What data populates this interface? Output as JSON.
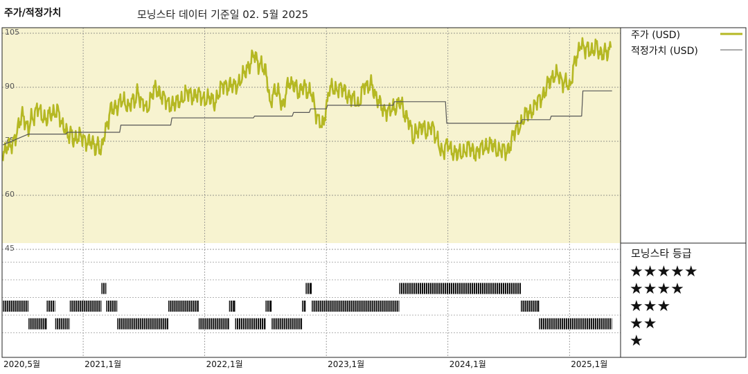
{
  "header": {
    "title": "주가/적정가치",
    "subtitle": "모닝스타 데이터 기준일 02. 5월 2025"
  },
  "legend": {
    "price_label": "주가 (USD)",
    "fair_label": "적정가치 (USD)",
    "rating_title": "모닝스타 등급",
    "stars": [
      "★★★★★",
      "★★★★",
      "★★★",
      "★★",
      "★"
    ]
  },
  "colors": {
    "price": "#b5b823",
    "fair": "#555555",
    "panel_bg": "#f7f3d0",
    "rating": "#111111"
  },
  "chart_data": {
    "type": "line",
    "x_tick_labels": [
      "2020,5월",
      "2021,1월",
      "2022,1월",
      "2023,1월",
      "2024,1월",
      "2025,1월"
    ],
    "x_ticks": [
      2020.333,
      2021.0,
      2022.0,
      2023.0,
      2024.0,
      2025.0
    ],
    "xlim": [
      2020.333,
      2025.42
    ],
    "y_tick_labels": [
      "105",
      "90",
      "75",
      "60",
      "45"
    ],
    "y_ticks": [
      105,
      90,
      75,
      60,
      45
    ],
    "ylim": [
      45,
      107
    ],
    "grid": true,
    "legend_position": "right",
    "series": [
      {
        "name": "주가 (USD)",
        "color": "#b5b823",
        "points": [
          [
            2020.34,
            72
          ],
          [
            2020.4,
            74
          ],
          [
            2020.45,
            77
          ],
          [
            2020.5,
            82
          ],
          [
            2020.55,
            79
          ],
          [
            2020.62,
            84
          ],
          [
            2020.7,
            81
          ],
          [
            2020.78,
            84
          ],
          [
            2020.85,
            78
          ],
          [
            2020.92,
            76
          ],
          [
            2021.0,
            76
          ],
          [
            2021.08,
            74
          ],
          [
            2021.15,
            73
          ],
          [
            2021.22,
            83
          ],
          [
            2021.3,
            86
          ],
          [
            2021.38,
            85
          ],
          [
            2021.45,
            88
          ],
          [
            2021.52,
            84
          ],
          [
            2021.6,
            90
          ],
          [
            2021.68,
            86
          ],
          [
            2021.76,
            85
          ],
          [
            2021.84,
            88
          ],
          [
            2021.92,
            88
          ],
          [
            2022.0,
            87
          ],
          [
            2022.08,
            86
          ],
          [
            2022.16,
            91
          ],
          [
            2022.24,
            90
          ],
          [
            2022.32,
            93
          ],
          [
            2022.4,
            99
          ],
          [
            2022.46,
            96
          ],
          [
            2022.5,
            95
          ],
          [
            2022.54,
            85
          ],
          [
            2022.58,
            90
          ],
          [
            2022.64,
            85
          ],
          [
            2022.7,
            92
          ],
          [
            2022.76,
            89
          ],
          [
            2022.82,
            90
          ],
          [
            2022.88,
            88
          ],
          [
            2022.94,
            80
          ],
          [
            2022.98,
            80
          ],
          [
            2023.02,
            89
          ],
          [
            2023.1,
            90
          ],
          [
            2023.18,
            88
          ],
          [
            2023.26,
            85
          ],
          [
            2023.32,
            91
          ],
          [
            2023.38,
            90
          ],
          [
            2023.44,
            85
          ],
          [
            2023.52,
            83
          ],
          [
            2023.6,
            86
          ],
          [
            2023.66,
            82
          ],
          [
            2023.72,
            76
          ],
          [
            2023.76,
            79
          ],
          [
            2023.82,
            78
          ],
          [
            2023.88,
            79
          ],
          [
            2023.94,
            72
          ],
          [
            2024.0,
            74
          ],
          [
            2024.08,
            71
          ],
          [
            2024.16,
            73
          ],
          [
            2024.24,
            72
          ],
          [
            2024.32,
            74
          ],
          [
            2024.4,
            73
          ],
          [
            2024.48,
            72
          ],
          [
            2024.56,
            78
          ],
          [
            2024.64,
            82
          ],
          [
            2024.72,
            85
          ],
          [
            2024.8,
            89
          ],
          [
            2024.88,
            94
          ],
          [
            2024.94,
            92
          ],
          [
            2025.0,
            90
          ],
          [
            2025.06,
            99
          ],
          [
            2025.1,
            102
          ],
          [
            2025.16,
            100
          ],
          [
            2025.22,
            101
          ],
          [
            2025.28,
            99
          ],
          [
            2025.34,
            101
          ]
        ]
      },
      {
        "name": "적정가치 (USD)",
        "color": "#555555",
        "points": [
          [
            2020.34,
            74
          ],
          [
            2020.55,
            77
          ],
          [
            2020.86,
            77
          ],
          [
            2020.87,
            77.5
          ],
          [
            2021.3,
            77.5
          ],
          [
            2021.31,
            79.5
          ],
          [
            2021.72,
            79.5
          ],
          [
            2021.73,
            81.5
          ],
          [
            2022.4,
            81.5
          ],
          [
            2022.41,
            82
          ],
          [
            2022.72,
            82
          ],
          [
            2022.73,
            83
          ],
          [
            2022.86,
            83
          ],
          [
            2022.87,
            84
          ],
          [
            2023.0,
            84
          ],
          [
            2023.01,
            85
          ],
          [
            2023.55,
            85
          ],
          [
            2023.56,
            86
          ],
          [
            2023.98,
            86
          ],
          [
            2023.99,
            80
          ],
          [
            2024.6,
            80
          ],
          [
            2024.61,
            81
          ],
          [
            2024.84,
            81
          ],
          [
            2024.85,
            82
          ],
          [
            2025.1,
            82
          ],
          [
            2025.11,
            89
          ],
          [
            2025.35,
            89
          ]
        ]
      }
    ],
    "star_rating": {
      "levels": [
        5,
        4,
        3,
        2,
        1
      ],
      "segments": [
        {
          "start": 2020.34,
          "end": 2020.55,
          "stars": 3
        },
        {
          "start": 2020.55,
          "end": 2020.7,
          "stars": 2
        },
        {
          "start": 2020.7,
          "end": 2020.77,
          "stars": 3
        },
        {
          "start": 2020.77,
          "end": 2020.89,
          "stars": 2
        },
        {
          "start": 2020.89,
          "end": 2021.15,
          "stars": 3
        },
        {
          "start": 2021.15,
          "end": 2021.19,
          "stars": 4
        },
        {
          "start": 2021.19,
          "end": 2021.28,
          "stars": 3
        },
        {
          "start": 2021.28,
          "end": 2021.7,
          "stars": 2
        },
        {
          "start": 2021.7,
          "end": 2021.95,
          "stars": 3
        },
        {
          "start": 2021.95,
          "end": 2022.2,
          "stars": 2
        },
        {
          "start": 2022.2,
          "end": 2022.25,
          "stars": 3
        },
        {
          "start": 2022.25,
          "end": 2022.5,
          "stars": 2
        },
        {
          "start": 2022.5,
          "end": 2022.55,
          "stars": 3
        },
        {
          "start": 2022.55,
          "end": 2022.8,
          "stars": 2
        },
        {
          "start": 2022.8,
          "end": 2022.83,
          "stars": 3
        },
        {
          "start": 2022.83,
          "end": 2022.88,
          "stars": 4
        },
        {
          "start": 2022.88,
          "end": 2023.6,
          "stars": 3
        },
        {
          "start": 2023.6,
          "end": 2024.6,
          "stars": 4
        },
        {
          "start": 2024.6,
          "end": 2024.75,
          "stars": 3
        },
        {
          "start": 2024.75,
          "end": 2025.35,
          "stars": 2
        }
      ]
    }
  }
}
